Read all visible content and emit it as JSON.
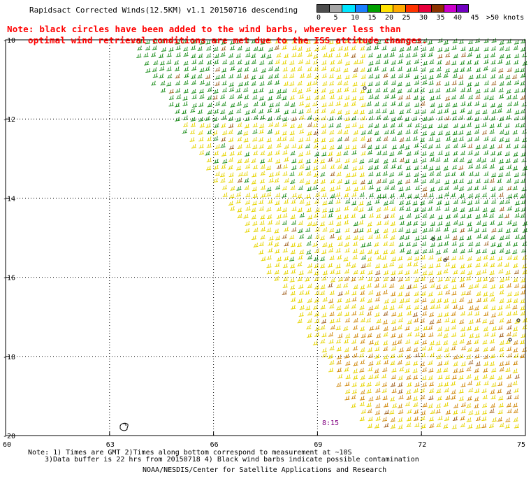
{
  "title": "Rapidsact Corrected Winds(12.5KM) v1.1 20150716 descending",
  "note": {
    "line1": "Note: black circles have been added to the wind barbs, wherever less than",
    "line2": "optimal wind retrieval conditions are met due to the ISS attitude changes."
  },
  "colorbar": {
    "labels": [
      "0",
      "5",
      "10",
      "15",
      "20",
      "25",
      "30",
      "35",
      "40",
      "45",
      ">50 knots"
    ],
    "colors": [
      "#4d4d4d",
      "#a6a6a6",
      "#00e5ff",
      "#1a7fff",
      "#00a000",
      "#ffe100",
      "#ffaa00",
      "#ff3300",
      "#e8003c",
      "#8c3200",
      "#cc00cc",
      "#7000c0"
    ]
  },
  "map": {
    "lat_labels": [
      "-10",
      "-12",
      "-14",
      "-16",
      "-18",
      "-20"
    ],
    "lon_labels": [
      "60",
      "63",
      "66",
      "69",
      "72",
      "75"
    ],
    "time_label": "8:15",
    "barb_colors": {
      "green": "#1f8f1f",
      "yellow": "#e6d400",
      "orange": "#d08a10",
      "brown": "#a06020"
    }
  },
  "footer": {
    "line1": "Note: 1) Times are GMT 2)Times along bottom correspond to measurement at ~10S",
    "line2": "3)Data buffer is 22 hrs from 20150718 4) Black wind barbs indicate possible contamination",
    "line3": "NOAA/NESDIS/Center for Satellite Applications and Research"
  }
}
